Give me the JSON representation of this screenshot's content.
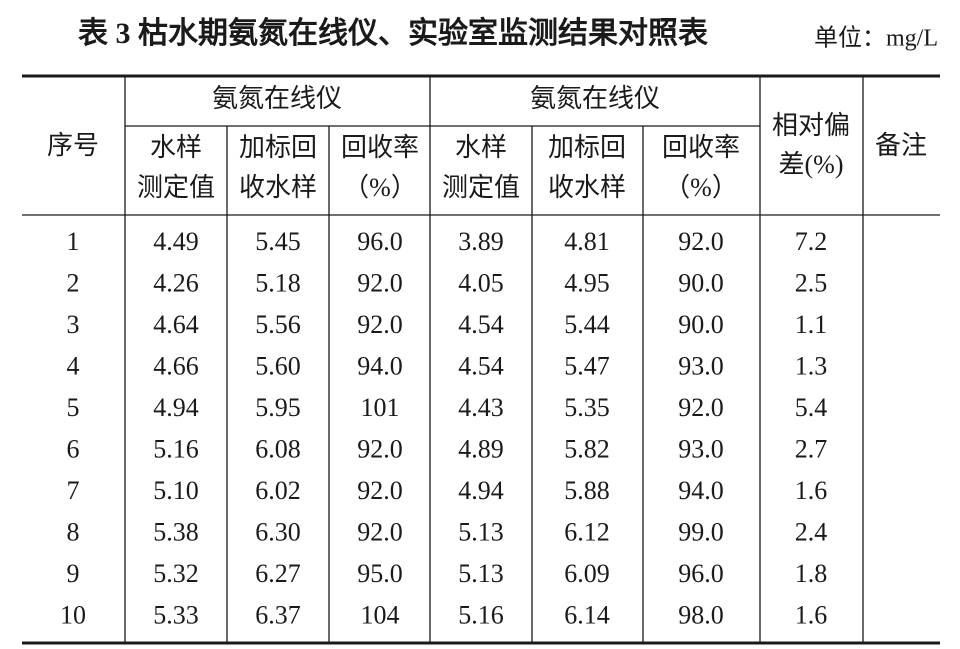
{
  "header": {
    "title": "表 3  枯水期氨氮在线仪、实验室监测结果对照表",
    "unit": "单位：mg/L"
  },
  "table": {
    "index_header": "序号",
    "group_headers": [
      "氨氮在线仪",
      "氨氮在线仪"
    ],
    "sub_headers": [
      [
        "水样",
        "测定值"
      ],
      [
        "加标回",
        "收水样"
      ],
      [
        "回收率",
        "（%）"
      ],
      [
        "水样",
        "测定值"
      ],
      [
        "加标回",
        "收水样"
      ],
      [
        "回收率",
        "（%）"
      ]
    ],
    "deviation_header": [
      "相对偏",
      "差(%)"
    ],
    "remarks_header": "备注",
    "rows": [
      [
        "1",
        "4.49",
        "5.45",
        "96.0",
        "3.89",
        "4.81",
        "92.0",
        "7.2"
      ],
      [
        "2",
        "4.26",
        "5.18",
        "92.0",
        "4.05",
        "4.95",
        "90.0",
        "2.5"
      ],
      [
        "3",
        "4.64",
        "5.56",
        "92.0",
        "4.54",
        "5.44",
        "90.0",
        "1.1"
      ],
      [
        "4",
        "4.66",
        "5.60",
        "94.0",
        "4.54",
        "5.47",
        "93.0",
        "1.3"
      ],
      [
        "5",
        "4.94",
        "5.95",
        "101",
        "4.43",
        "5.35",
        "92.0",
        "5.4"
      ],
      [
        "6",
        "5.16",
        "6.08",
        "92.0",
        "4.89",
        "5.82",
        "93.0",
        "2.7"
      ],
      [
        "7",
        "5.10",
        "6.02",
        "92.0",
        "4.94",
        "5.88",
        "94.0",
        "1.6"
      ],
      [
        "8",
        "5.38",
        "6.30",
        "92.0",
        "5.13",
        "6.12",
        "99.0",
        "2.4"
      ],
      [
        "9",
        "5.32",
        "6.27",
        "95.0",
        "5.13",
        "6.09",
        "96.0",
        "1.8"
      ],
      [
        "10",
        "5.33",
        "6.37",
        "104",
        "5.16",
        "6.14",
        "98.0",
        "1.6"
      ]
    ]
  }
}
